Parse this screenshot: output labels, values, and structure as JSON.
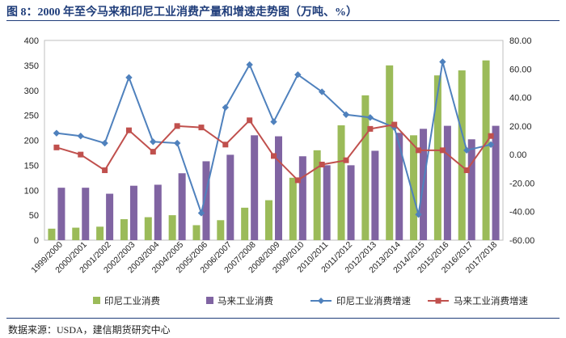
{
  "title": "图 8：2000 年至今马来和印尼工业消费产量和增速走势图（万吨、%）",
  "source": "数据来源：USDA，建信期货研究中心",
  "chart_data": {
    "type": "bar",
    "categories": [
      "1999/2000",
      "2000/2001",
      "2001/2002",
      "2002/2003",
      "2003/2004",
      "2004/2005",
      "2005/2006",
      "2006/2007",
      "2007/2008",
      "2008/2009",
      "2009/2010",
      "2010/2011",
      "2011/2012",
      "2012/2013",
      "2013/2014",
      "2014/2015",
      "2015/2016",
      "2016/2017",
      "2017/2018"
    ],
    "y_left": {
      "min": 0,
      "max": 400,
      "ticks": [
        "0",
        "50",
        "100",
        "150",
        "200",
        "250",
        "300",
        "350",
        "400"
      ]
    },
    "y_right": {
      "min": -60,
      "max": 80,
      "ticks": [
        "-60.00",
        "-40.00",
        "-20.00",
        "0.00",
        "20.00",
        "40.00",
        "60.00",
        "80.00"
      ]
    },
    "series": [
      {
        "name": "印尼工业消费",
        "type": "bar",
        "axis": "left",
        "color": "#9bbb59",
        "values": [
          23,
          25,
          27,
          42,
          46,
          50,
          30,
          40,
          65,
          80,
          125,
          180,
          230,
          290,
          350,
          210,
          330,
          340,
          360
        ]
      },
      {
        "name": "马来工业消费",
        "type": "bar",
        "axis": "left",
        "color": "#8064a2",
        "values": [
          105,
          105,
          93,
          109,
          111,
          134,
          158,
          171,
          210,
          208,
          168,
          150,
          150,
          179,
          215,
          223,
          229,
          202,
          229
        ]
      },
      {
        "name": "印尼工业消费增速",
        "type": "line",
        "axis": "right",
        "color": "#4f81bd",
        "marker": "diamond",
        "values": [
          15,
          13,
          8,
          54,
          9,
          8,
          -41,
          33,
          63,
          23,
          56,
          44,
          28,
          26,
          19,
          -42,
          65,
          3,
          7
        ]
      },
      {
        "name": "马来工业消费增速",
        "type": "line",
        "axis": "right",
        "color": "#c0504d",
        "marker": "square",
        "values": [
          5,
          0,
          -11,
          17,
          2,
          20,
          19,
          7,
          24,
          -1,
          -18,
          -7,
          -4,
          18,
          21,
          3,
          3,
          -11,
          13
        ]
      }
    ],
    "legend_position": "bottom",
    "grid": false
  }
}
